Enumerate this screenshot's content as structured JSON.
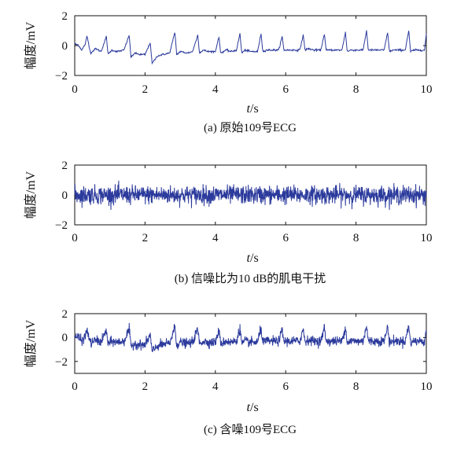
{
  "chart_data": [
    {
      "type": "line",
      "caption": "(a) 原始109号ECG",
      "xlabel_italic": "t",
      "xlabel_unit": "/s",
      "ylabel": "幅度/mV",
      "xlim": [
        0,
        10
      ],
      "ylim": [
        -2,
        2
      ],
      "x_ticks": [
        "0",
        "2",
        "4",
        "6",
        "8",
        "10"
      ],
      "y_ticks": [
        "2",
        "0",
        "−2"
      ],
      "series": [
        {
          "color": "#2b3a9c",
          "x": [
            0.0,
            0.1,
            0.2,
            0.3,
            0.35,
            0.45,
            0.6,
            0.75,
            0.9,
            0.95,
            1.05,
            1.2,
            1.4,
            1.55,
            1.6,
            1.7,
            1.85,
            2.0,
            2.15,
            2.2,
            2.35,
            2.5,
            2.7,
            2.85,
            2.9,
            3.0,
            3.2,
            3.35,
            3.5,
            3.55,
            3.65,
            3.8,
            4.0,
            4.1,
            4.15,
            4.3,
            4.45,
            4.6,
            4.7,
            4.75,
            4.85,
            5.0,
            5.2,
            5.3,
            5.35,
            5.45,
            5.6,
            5.8,
            5.9,
            5.95,
            6.05,
            6.2,
            6.4,
            6.5,
            6.55,
            6.65,
            6.8,
            7.0,
            7.1,
            7.15,
            7.25,
            7.4,
            7.6,
            7.7,
            7.75,
            7.85,
            8.0,
            8.2,
            8.3,
            8.35,
            8.45,
            8.6,
            8.8,
            8.9,
            8.95,
            9.05,
            9.2,
            9.4,
            9.5,
            9.55,
            9.65,
            9.8,
            9.95,
            10.0
          ],
          "y": [
            0.1,
            0.05,
            -0.3,
            0.1,
            0.65,
            -0.5,
            -0.2,
            -0.4,
            0.6,
            -0.6,
            -0.3,
            -0.4,
            -0.3,
            0.7,
            -0.8,
            -0.5,
            -0.6,
            -0.6,
            0.2,
            -1.2,
            -0.7,
            -0.6,
            -0.5,
            0.9,
            -0.6,
            -0.4,
            -0.5,
            -0.4,
            0.7,
            -0.5,
            -0.3,
            -0.4,
            -0.4,
            0.6,
            -0.5,
            -0.3,
            -0.4,
            -0.3,
            0.8,
            -0.5,
            -0.3,
            -0.4,
            -0.4,
            0.8,
            -0.4,
            -0.3,
            -0.3,
            -0.3,
            0.6,
            -0.3,
            -0.3,
            -0.3,
            -0.3,
            0.7,
            -0.3,
            -0.2,
            -0.3,
            -0.3,
            0.8,
            -0.3,
            -0.3,
            -0.3,
            -0.3,
            0.9,
            -0.4,
            -0.3,
            -0.3,
            -0.3,
            1.0,
            -0.3,
            -0.3,
            -0.3,
            -0.3,
            0.9,
            -0.4,
            -0.3,
            -0.3,
            -0.3,
            1.0,
            -0.4,
            -0.3,
            -0.3,
            -0.3,
            0.8
          ]
        }
      ]
    },
    {
      "type": "line",
      "caption": "(b) 信噪比为10 dB的肌电干扰",
      "xlabel_italic": "t",
      "xlabel_unit": "/s",
      "ylabel": "幅度/mV",
      "xlim": [
        0,
        10
      ],
      "ylim": [
        -2,
        2
      ],
      "x_ticks": [
        "0",
        "2",
        "4",
        "6",
        "8",
        "10"
      ],
      "y_ticks": [
        "2",
        "0",
        "−2"
      ],
      "series": [
        {
          "color": "#2b3a9c",
          "description_values": "zero-mean noise, amplitude approx ±0.8 mV",
          "x": [
            0.0,
            10.0
          ],
          "y": [
            0.0,
            0.0
          ],
          "amplitude": 0.8
        }
      ]
    },
    {
      "type": "line",
      "caption": "(c) 含噪109号ECG",
      "xlabel_italic": "t",
      "xlabel_unit": "/s",
      "ylabel": "幅度/mV",
      "xlim": [
        0,
        10
      ],
      "ylim": [
        -3,
        2
      ],
      "x_ticks": [
        "0",
        "2",
        "4",
        "6",
        "8",
        "10"
      ],
      "y_ticks": [
        "2",
        "0",
        "−2"
      ],
      "series": [
        {
          "color": "#2b3a9c",
          "x": [
            0.0,
            0.5,
            1.0,
            1.5,
            1.6,
            2.0,
            2.3,
            2.5,
            3.0,
            3.5,
            4.0,
            4.5,
            5.0,
            5.5,
            6.0,
            6.5,
            7.0,
            7.5,
            8.0,
            8.5,
            9.0,
            9.5,
            10.0
          ],
          "y": [
            0.2,
            -0.4,
            -0.3,
            -0.2,
            0.9,
            -0.7,
            -1.0,
            -0.6,
            -0.5,
            -0.4,
            -0.3,
            -0.3,
            -0.3,
            -0.2,
            -0.2,
            -0.2,
            -0.1,
            -0.2,
            -0.1,
            -0.2,
            -0.1,
            -0.1,
            0.1
          ],
          "amplitude": 0.6
        }
      ]
    }
  ]
}
